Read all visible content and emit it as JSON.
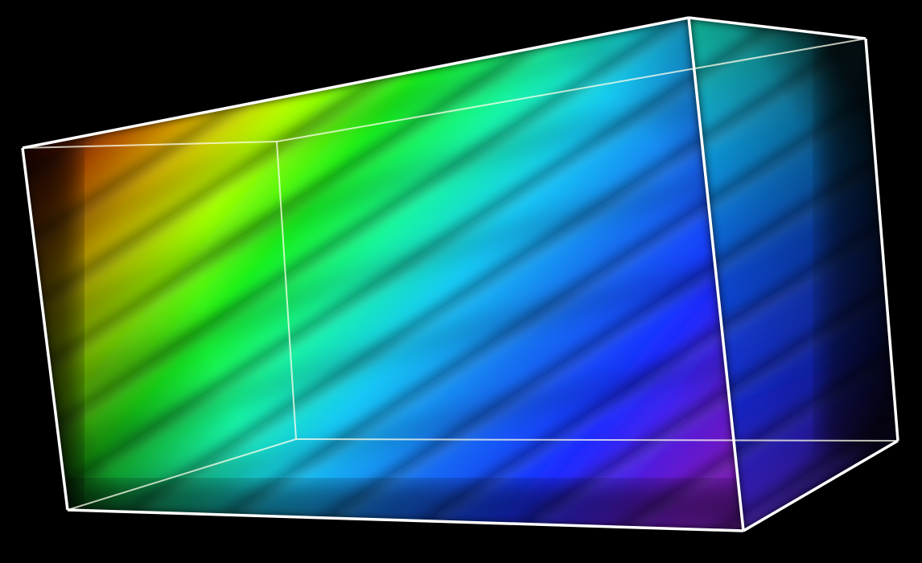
{
  "scene": {
    "kind": "3d-volume-render",
    "background_color": "#000000",
    "bounding_box_color": "#ffffff",
    "hidden_edge_color": "#ffffee",
    "colormap": [
      "#c41a00",
      "#ff7a00",
      "#ffd400",
      "#a8ff00",
      "#19f01a",
      "#12f5a2",
      "#17c9f5",
      "#1570f0",
      "#1a2cff",
      "#5a1ee6",
      "#9a20f0"
    ]
  }
}
